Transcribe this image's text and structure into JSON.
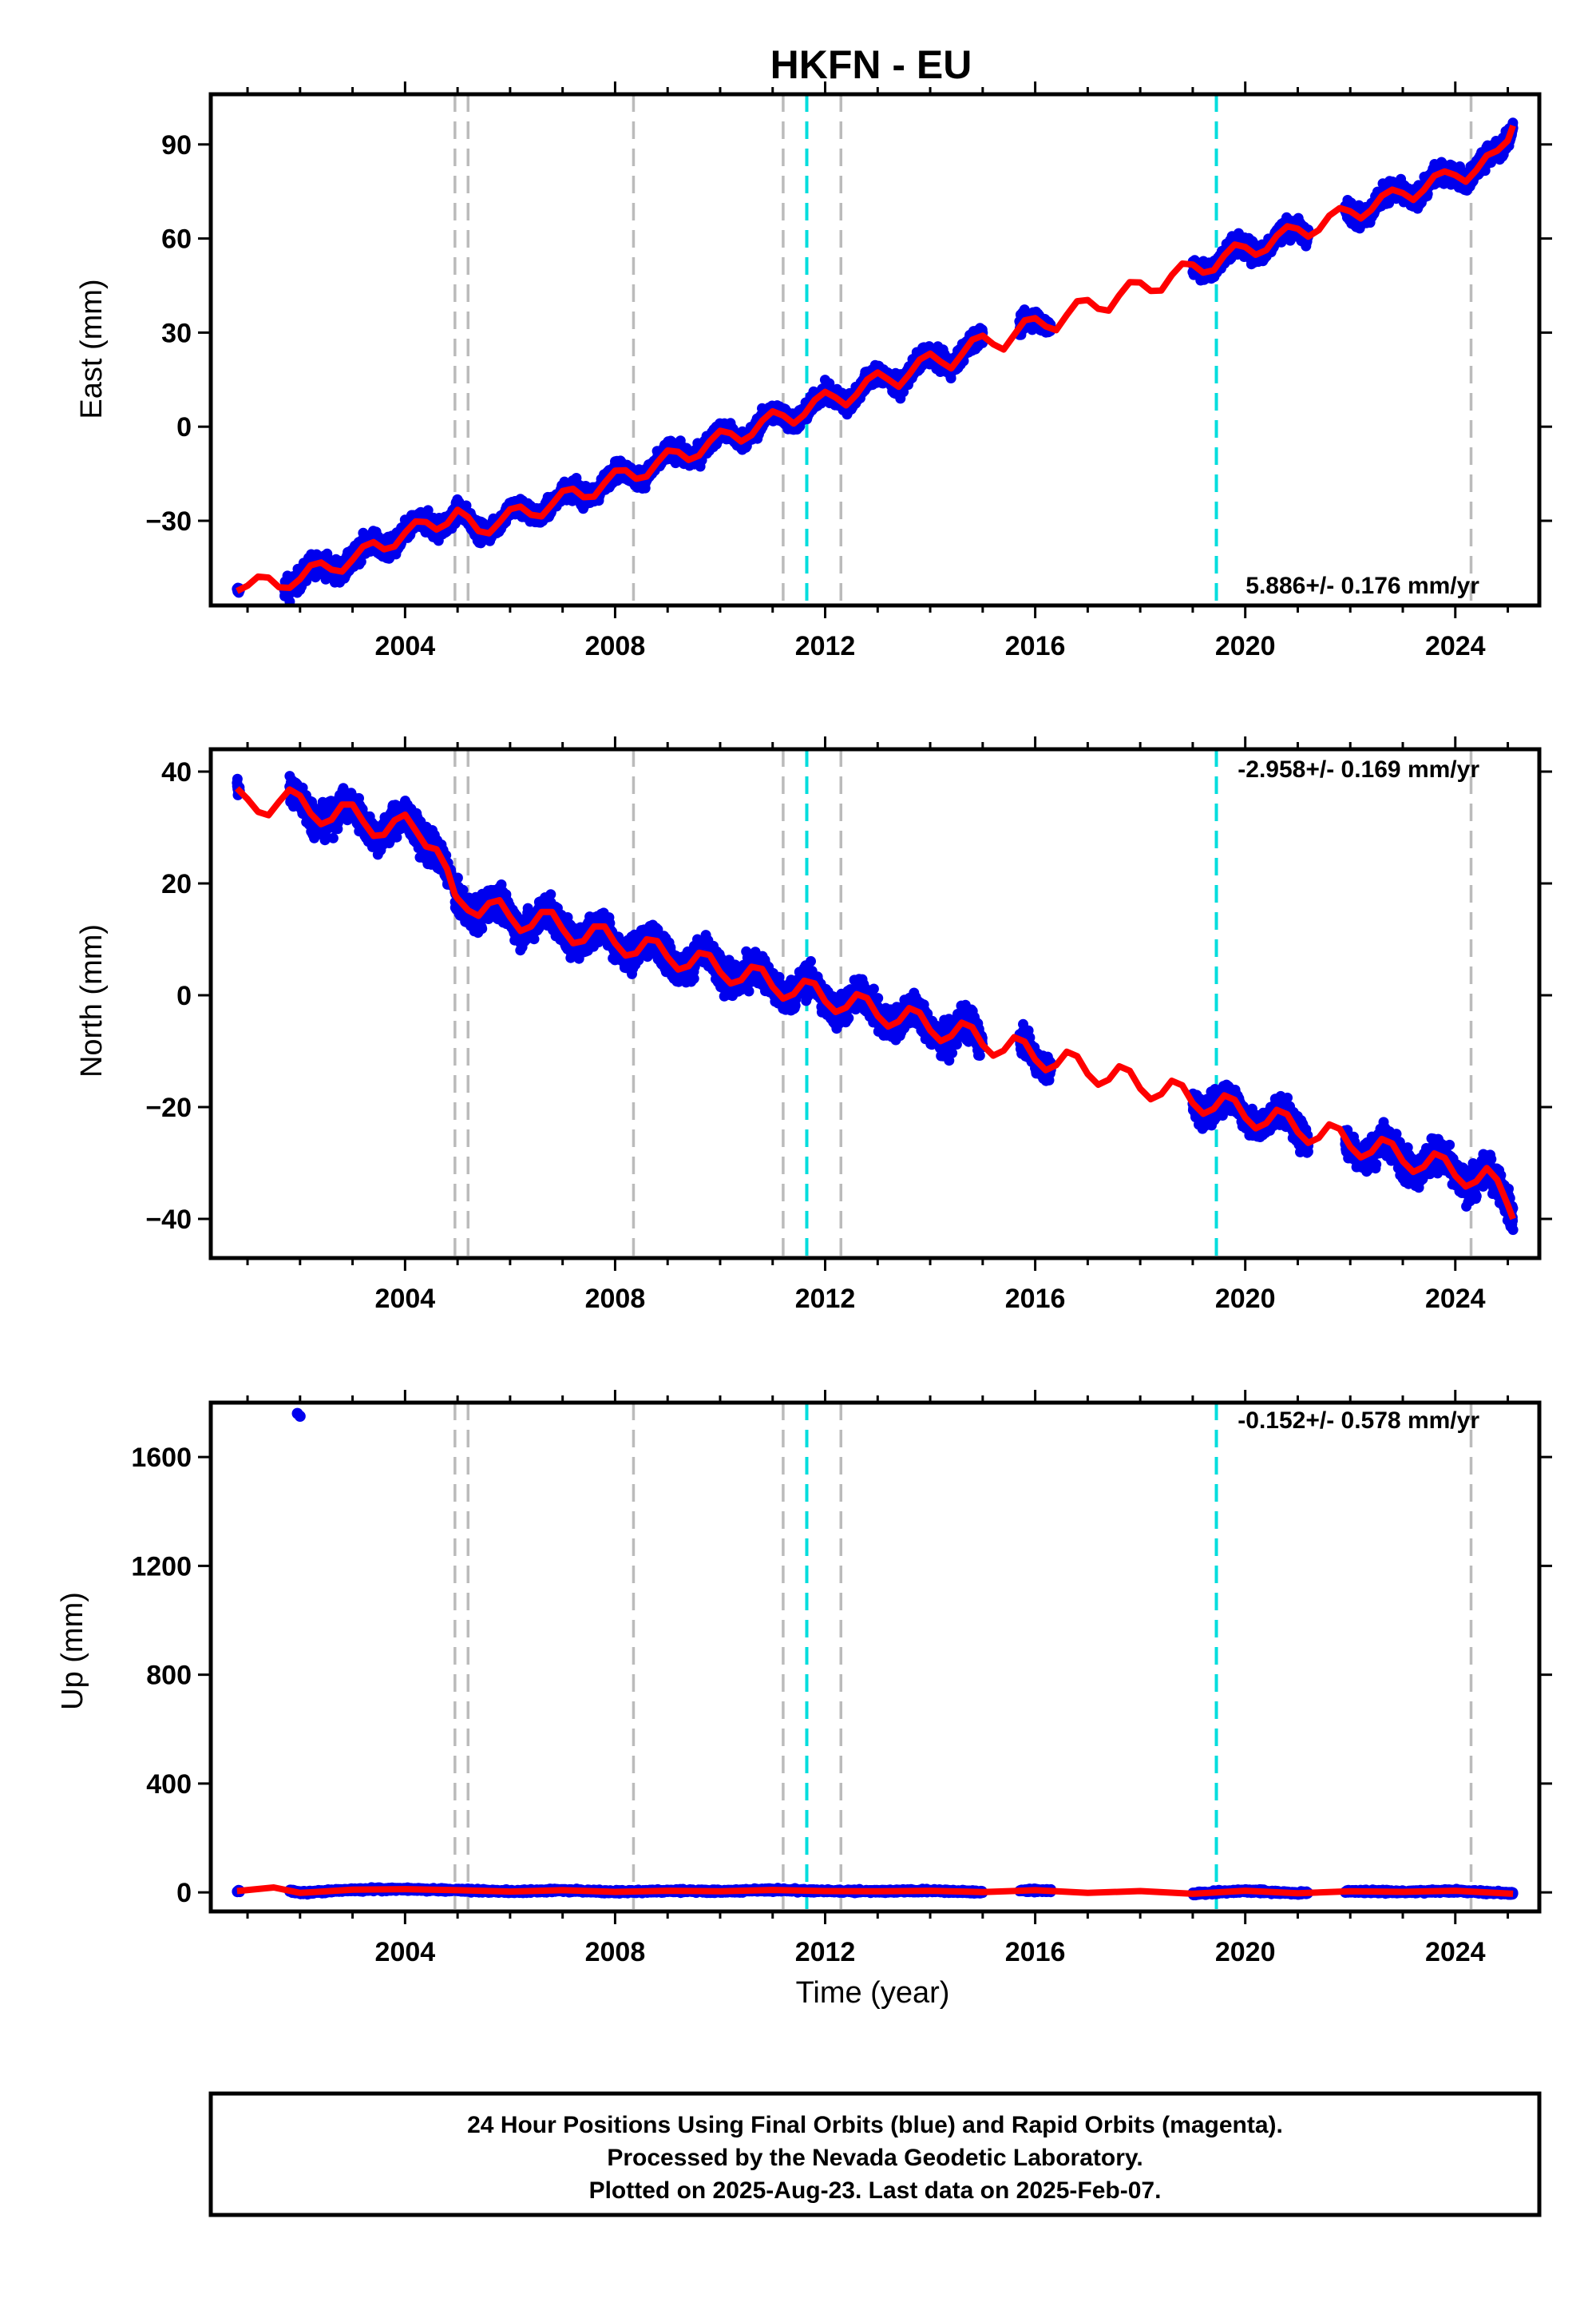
{
  "title": "HKFN - EU",
  "chart_data": [
    {
      "type": "scatter",
      "panel": "east",
      "ylabel": "East (mm)",
      "xlabel": "",
      "xlim": [
        2000.3,
        2025.6
      ],
      "ylim": [
        -57,
        106
      ],
      "yticks": [
        -30,
        0,
        30,
        60,
        90
      ],
      "ytick_labels": [
        "−30",
        "0",
        "30",
        "60",
        "90"
      ],
      "xticks": [
        2004,
        2008,
        2012,
        2016,
        2020,
        2024
      ],
      "xtick_labels": [
        "2004",
        "2008",
        "2012",
        "2016",
        "2020",
        "2024"
      ],
      "rate_text": "5.886+/- 0.176 mm/yr",
      "rate_position": "bottom-right",
      "model": {
        "name": "model fit",
        "color": "#ff0000",
        "x": [
          2000.8,
          2001.0,
          2001.2,
          2001.4,
          2001.6,
          2001.8,
          2002.0,
          2002.2,
          2002.4,
          2002.6,
          2002.8,
          2003.0,
          2003.2,
          2003.4,
          2003.6,
          2003.8,
          2004.0,
          2004.2,
          2004.4,
          2004.6,
          2004.8,
          2005.0,
          2005.2,
          2005.4,
          2005.6,
          2005.8,
          2006.0,
          2006.2,
          2006.4,
          2006.6,
          2006.8,
          2007.0,
          2007.2,
          2007.4,
          2007.6,
          2007.8,
          2008.0,
          2008.2,
          2008.4,
          2008.6,
          2008.8,
          2009.0,
          2009.2,
          2009.4,
          2009.6,
          2009.8,
          2010.0,
          2010.2,
          2010.4,
          2010.6,
          2010.8,
          2011.0,
          2011.2,
          2011.4,
          2011.6,
          2011.8,
          2012.0,
          2012.2,
          2012.4,
          2012.6,
          2012.8,
          2013.0,
          2013.2,
          2013.4,
          2013.6,
          2013.8,
          2014.0,
          2014.2,
          2014.4,
          2014.6,
          2014.8,
          2015.0,
          2015.2,
          2015.4,
          2015.6,
          2015.8,
          2016.0,
          2016.2,
          2016.4,
          2016.6,
          2016.8,
          2017.0,
          2017.2,
          2017.4,
          2017.6,
          2017.8,
          2018.0,
          2018.2,
          2018.4,
          2018.6,
          2018.8,
          2019.0,
          2019.2,
          2019.4,
          2019.6,
          2019.8,
          2020.0,
          2020.2,
          2020.4,
          2020.6,
          2020.8,
          2021.0,
          2021.2,
          2021.4,
          2021.6,
          2021.8,
          2022.0,
          2022.2,
          2022.4,
          2022.6,
          2022.8,
          2023.0,
          2023.2,
          2023.4,
          2023.6,
          2023.8,
          2024.0,
          2024.2,
          2024.4,
          2024.6,
          2024.8,
          2025.0,
          2025.1
        ],
        "y": [
          -52.4,
          -50.7,
          -47.8,
          -48.1,
          -51.2,
          -51.4,
          -48.6,
          -44.2,
          -43.3,
          -45.6,
          -46.2,
          -42.4,
          -38.2,
          -36.8,
          -39.1,
          -38.2,
          -33.8,
          -30.2,
          -30.4,
          -32.8,
          -31.0,
          -26.5,
          -28.8,
          -33.3,
          -34.0,
          -30.4,
          -26.3,
          -25.5,
          -28.1,
          -28.6,
          -24.7,
          -20.5,
          -19.8,
          -22.5,
          -22.3,
          -17.9,
          -14.0,
          -13.9,
          -16.6,
          -15.9,
          -11.4,
          -7.6,
          -8.0,
          -10.6,
          -9.2,
          -4.7,
          -1.3,
          -2.1,
          -4.7,
          -2.7,
          1.9,
          4.9,
          3.6,
          1.0,
          3.8,
          8.5,
          11.1,
          9.3,
          6.8,
          10.3,
          15.0,
          17.3,
          15.1,
          12.7,
          16.7,
          21.4,
          23.3,
          20.7,
          18.6,
          23.0,
          27.7,
          29.0,
          26.3,
          24.6,
          29.3,
          33.9,
          34.6,
          32.0,
          30.8,
          35.6,
          40.0,
          40.4,
          37.6,
          37.0,
          41.9,
          46.1,
          46.0,
          43.3,
          43.4,
          48.3,
          52.0,
          51.7,
          49.1,
          49.9,
          54.6,
          58.1,
          57.3,
          54.8,
          56.3,
          60.9,
          63.9,
          63.1,
          60.6,
          62.7,
          67.3,
          69.7,
          68.7,
          66.4,
          69.1,
          73.6,
          75.6,
          74.5,
          72.3,
          75.5,
          80.0,
          81.4,
          80.2,
          78.1,
          81.8,
          86.5,
          88.0,
          91.2,
          96.0
        ]
      },
      "series": [
        {
          "name": "daily positions",
          "color": "#0000ee",
          "segments": [
            [
              2000.8,
              2000.85,
              -53,
              2.0
            ],
            [
              2001.7,
              2004.9,
              -47,
              4.8
            ],
            [
              2004.9,
              2015.0,
              -30,
              4.2
            ],
            [
              2015.7,
              2016.3,
              35,
              3.8
            ],
            [
              2019.0,
              2021.2,
              52,
              4.5
            ],
            [
              2021.9,
              2025.1,
              73,
              4.5
            ]
          ]
        }
      ],
      "event_lines": [
        {
          "x": 2004.95,
          "color": "#bbbbbb",
          "style": "dashed"
        },
        {
          "x": 2005.2,
          "color": "#bbbbbb",
          "style": "dashed"
        },
        {
          "x": 2008.35,
          "color": "#bbbbbb",
          "style": "dashed"
        },
        {
          "x": 2011.2,
          "color": "#bbbbbb",
          "style": "dashed"
        },
        {
          "x": 2011.65,
          "color": "#00dddd",
          "style": "dashed"
        },
        {
          "x": 2012.3,
          "color": "#bbbbbb",
          "style": "dashed"
        },
        {
          "x": 2019.45,
          "color": "#00dddd",
          "style": "dashed"
        },
        {
          "x": 2024.3,
          "color": "#bbbbbb",
          "style": "dashed"
        }
      ]
    },
    {
      "type": "scatter",
      "panel": "north",
      "ylabel": "North (mm)",
      "xlabel": "",
      "xlim": [
        2000.3,
        2025.6
      ],
      "ylim": [
        -47,
        44
      ],
      "yticks": [
        -40,
        -20,
        0,
        20,
        40
      ],
      "ytick_labels": [
        "−40",
        "−20",
        "0",
        "20",
        "40"
      ],
      "xticks": [
        2004,
        2008,
        2012,
        2016,
        2020,
        2024
      ],
      "xtick_labels": [
        "2004",
        "2008",
        "2012",
        "2016",
        "2020",
        "2024"
      ],
      "rate_text": "-2.958+/- 0.169 mm/yr",
      "rate_position": "top-right",
      "model": {
        "name": "model fit",
        "color": "#ff0000",
        "x": [
          2000.8,
          2001.0,
          2001.2,
          2001.4,
          2001.6,
          2001.8,
          2002.0,
          2002.2,
          2002.4,
          2002.6,
          2002.8,
          2003.0,
          2003.2,
          2003.4,
          2003.6,
          2003.8,
          2004.0,
          2004.2,
          2004.4,
          2004.6,
          2004.8,
          2004.95,
          2005.0,
          2005.2,
          2005.4,
          2005.6,
          2005.8,
          2006.0,
          2006.2,
          2006.4,
          2006.6,
          2006.8,
          2007.0,
          2007.2,
          2007.4,
          2007.6,
          2007.8,
          2008.0,
          2008.2,
          2008.4,
          2008.6,
          2008.8,
          2009.0,
          2009.2,
          2009.4,
          2009.6,
          2009.8,
          2010.0,
          2010.2,
          2010.4,
          2010.6,
          2010.8,
          2011.0,
          2011.2,
          2011.4,
          2011.6,
          2011.8,
          2012.0,
          2012.2,
          2012.4,
          2012.6,
          2012.8,
          2013.0,
          2013.2,
          2013.4,
          2013.6,
          2013.8,
          2014.0,
          2014.2,
          2014.4,
          2014.6,
          2014.8,
          2015.0,
          2015.2,
          2015.4,
          2015.6,
          2015.8,
          2016.0,
          2016.2,
          2016.4,
          2016.6,
          2016.8,
          2017.0,
          2017.2,
          2017.4,
          2017.6,
          2017.8,
          2018.0,
          2018.2,
          2018.4,
          2018.6,
          2018.8,
          2019.0,
          2019.2,
          2019.4,
          2019.6,
          2019.8,
          2020.0,
          2020.2,
          2020.4,
          2020.6,
          2020.8,
          2021.0,
          2021.2,
          2021.4,
          2021.6,
          2021.8,
          2022.0,
          2022.2,
          2022.4,
          2022.6,
          2022.8,
          2023.0,
          2023.2,
          2023.4,
          2023.6,
          2023.8,
          2024.0,
          2024.2,
          2024.4,
          2024.6,
          2024.8,
          2025.0,
          2025.1
        ],
        "y": [
          37.0,
          35.1,
          32.8,
          32.2,
          34.6,
          36.8,
          35.7,
          32.5,
          30.6,
          31.4,
          34.1,
          34.1,
          31.1,
          28.5,
          28.7,
          31.3,
          32.3,
          29.5,
          26.6,
          26.1,
          22.6,
          18.0,
          17.3,
          15.2,
          14.2,
          16.5,
          17.0,
          14.0,
          11.5,
          12.3,
          14.9,
          14.9,
          11.8,
          9.3,
          9.7,
          12.3,
          12.3,
          9.3,
          7.1,
          7.5,
          10.0,
          9.7,
          6.8,
          4.6,
          5.2,
          7.6,
          7.2,
          4.1,
          2.1,
          2.7,
          5.1,
          4.7,
          1.5,
          -0.6,
          0.2,
          2.6,
          2.1,
          -1.1,
          -3.0,
          -2.2,
          0.2,
          -0.5,
          -3.7,
          -5.6,
          -4.7,
          -2.3,
          -3.1,
          -6.3,
          -8.2,
          -7.3,
          -4.9,
          -5.7,
          -8.9,
          -10.8,
          -9.9,
          -7.5,
          -8.3,
          -11.5,
          -13.4,
          -12.5,
          -10.1,
          -10.9,
          -14.1,
          -16.0,
          -15.1,
          -12.7,
          -13.5,
          -16.7,
          -18.6,
          -17.7,
          -15.3,
          -16.1,
          -19.3,
          -21.2,
          -20.3,
          -17.9,
          -18.7,
          -21.9,
          -23.8,
          -22.9,
          -20.5,
          -21.3,
          -24.5,
          -26.4,
          -25.5,
          -23.1,
          -23.9,
          -27.1,
          -29.0,
          -28.1,
          -25.7,
          -26.5,
          -29.7,
          -31.6,
          -30.7,
          -28.3,
          -29.1,
          -32.3,
          -34.2,
          -33.3,
          -30.9,
          -33.0,
          -37.5,
          -40.0
        ]
      },
      "series": [
        {
          "name": "daily positions",
          "color": "#0000ee",
          "segments": [
            [
              2000.8,
              2000.85,
              38,
              2.5
            ],
            [
              2001.8,
              2004.9,
              30,
              4.0
            ],
            [
              2004.95,
              2015.0,
              0,
              4.0
            ],
            [
              2015.7,
              2016.3,
              -11,
              3.0
            ],
            [
              2019.0,
              2021.2,
              -20,
              3.5
            ],
            [
              2021.9,
              2025.1,
              -31,
              4.0
            ]
          ]
        }
      ],
      "event_lines": [
        {
          "x": 2004.95,
          "color": "#bbbbbb",
          "style": "dashed"
        },
        {
          "x": 2005.2,
          "color": "#bbbbbb",
          "style": "dashed"
        },
        {
          "x": 2008.35,
          "color": "#bbbbbb",
          "style": "dashed"
        },
        {
          "x": 2011.2,
          "color": "#bbbbbb",
          "style": "dashed"
        },
        {
          "x": 2011.65,
          "color": "#00dddd",
          "style": "dashed"
        },
        {
          "x": 2012.3,
          "color": "#bbbbbb",
          "style": "dashed"
        },
        {
          "x": 2019.45,
          "color": "#00dddd",
          "style": "dashed"
        },
        {
          "x": 2024.3,
          "color": "#bbbbbb",
          "style": "dashed"
        }
      ]
    },
    {
      "type": "scatter",
      "panel": "up",
      "ylabel": "Up (mm)",
      "xlabel": "Time (year)",
      "xlim": [
        2000.3,
        2025.6
      ],
      "ylim": [
        -70,
        1800
      ],
      "yticks": [
        0,
        400,
        800,
        1200,
        1600
      ],
      "ytick_labels": [
        "0",
        "400",
        "800",
        "1200",
        "1600"
      ],
      "xticks": [
        2004,
        2008,
        2012,
        2016,
        2020,
        2024
      ],
      "xtick_labels": [
        "2004",
        "2008",
        "2012",
        "2016",
        "2020",
        "2024"
      ],
      "rate_text": "-0.152+/- 0.578 mm/yr",
      "rate_position": "top-right",
      "model": {
        "name": "model fit",
        "color": "#ff0000",
        "x": [
          2000.8,
          2001.5,
          2002.0,
          2003.0,
          2004.0,
          2005.0,
          2006.0,
          2007.0,
          2008.0,
          2009.0,
          2010.0,
          2011.0,
          2012.0,
          2013.0,
          2014.0,
          2015.0,
          2016.0,
          2017.0,
          2018.0,
          2019.0,
          2020.0,
          2021.0,
          2022.0,
          2023.0,
          2024.0,
          2025.1
        ],
        "y": [
          5,
          18,
          -2,
          10,
          12,
          8,
          3,
          8,
          2,
          6,
          4,
          9,
          5,
          4,
          6,
          1,
          8,
          -2,
          5,
          -5,
          6,
          -3,
          4,
          2,
          6,
          -5
        ]
      },
      "series": [
        {
          "name": "daily positions",
          "color": "#0000ee",
          "segments": [
            [
              2000.8,
              2000.85,
              5,
              6
            ],
            [
              2001.8,
              2004.9,
              3,
              8
            ],
            [
              2004.95,
              2015.0,
              3,
              8
            ],
            [
              2015.7,
              2016.3,
              0,
              7
            ],
            [
              2019.0,
              2021.2,
              2,
              8
            ],
            [
              2021.9,
              2025.1,
              0,
              8
            ]
          ],
          "outliers": [
            [
              2001.95,
              1760
            ],
            [
              2002.0,
              1750
            ]
          ]
        }
      ],
      "event_lines": [
        {
          "x": 2004.95,
          "color": "#bbbbbb",
          "style": "dashed"
        },
        {
          "x": 2005.2,
          "color": "#bbbbbb",
          "style": "dashed"
        },
        {
          "x": 2008.35,
          "color": "#bbbbbb",
          "style": "dashed"
        },
        {
          "x": 2011.2,
          "color": "#bbbbbb",
          "style": "dashed"
        },
        {
          "x": 2011.65,
          "color": "#00dddd",
          "style": "dashed"
        },
        {
          "x": 2012.3,
          "color": "#bbbbbb",
          "style": "dashed"
        },
        {
          "x": 2019.45,
          "color": "#00dddd",
          "style": "dashed"
        },
        {
          "x": 2024.3,
          "color": "#bbbbbb",
          "style": "dashed"
        }
      ]
    }
  ],
  "caption": {
    "line1": "24 Hour Positions Using Final Orbits (blue) and Rapid Orbits (magenta).",
    "line2": "Processed by the Nevada Geodetic Laboratory.",
    "line3": "Plotted on 2025-Aug-23. Last data on 2025-Feb-07."
  }
}
